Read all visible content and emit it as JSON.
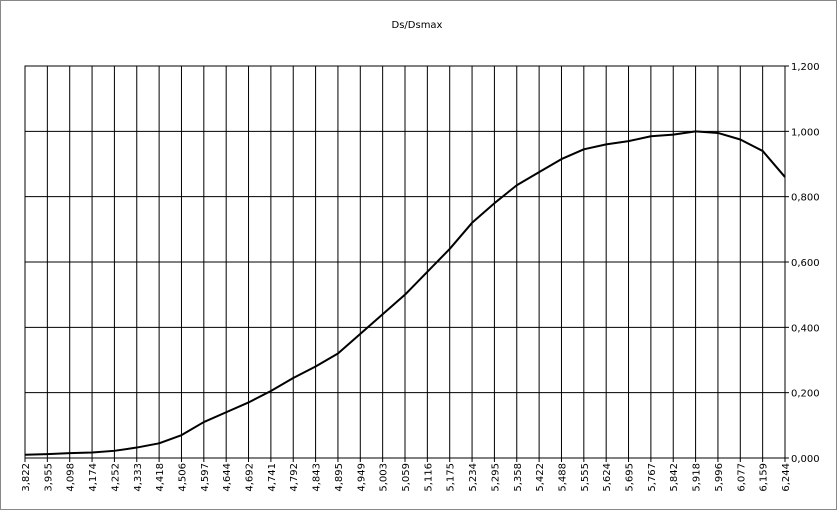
{
  "chart_data": {
    "type": "line",
    "title": "Ds/Dsmax",
    "categories": [
      "3,822",
      "3,955",
      "4,098",
      "4,174",
      "4,252",
      "4,333",
      "4,418",
      "4,506",
      "4,597",
      "4,644",
      "4,692",
      "4,741",
      "4,792",
      "4,843",
      "4,895",
      "4,949",
      "5,003",
      "5,059",
      "5,116",
      "5,175",
      "5,234",
      "5,295",
      "5,358",
      "5,422",
      "5,488",
      "5,555",
      "5,624",
      "5,695",
      "5,767",
      "5,842",
      "5,918",
      "5,996",
      "6,077",
      "6,159",
      "6,244"
    ],
    "values": [
      0.01,
      0.012,
      0.015,
      0.017,
      0.022,
      0.032,
      0.045,
      0.07,
      0.11,
      0.14,
      0.17,
      0.205,
      0.245,
      0.28,
      0.32,
      0.38,
      0.44,
      0.5,
      0.57,
      0.64,
      0.72,
      0.78,
      0.835,
      0.875,
      0.915,
      0.945,
      0.96,
      0.97,
      0.985,
      0.99,
      1.0,
      0.995,
      0.975,
      0.94,
      0.86
    ],
    "color": "#000000",
    "ylim": [
      0,
      1.2
    ],
    "yticks": [
      {
        "value": 0,
        "label": "0,000"
      },
      {
        "value": 0.2,
        "label": "0,200"
      },
      {
        "value": 0.4,
        "label": "0,400"
      },
      {
        "value": 0.6,
        "label": "0,600"
      },
      {
        "value": 0.8,
        "label": "0,800"
      },
      {
        "value": 1.0,
        "label": "1,000"
      },
      {
        "value": 1.2,
        "label": "1,200"
      }
    ],
    "grid": true
  }
}
